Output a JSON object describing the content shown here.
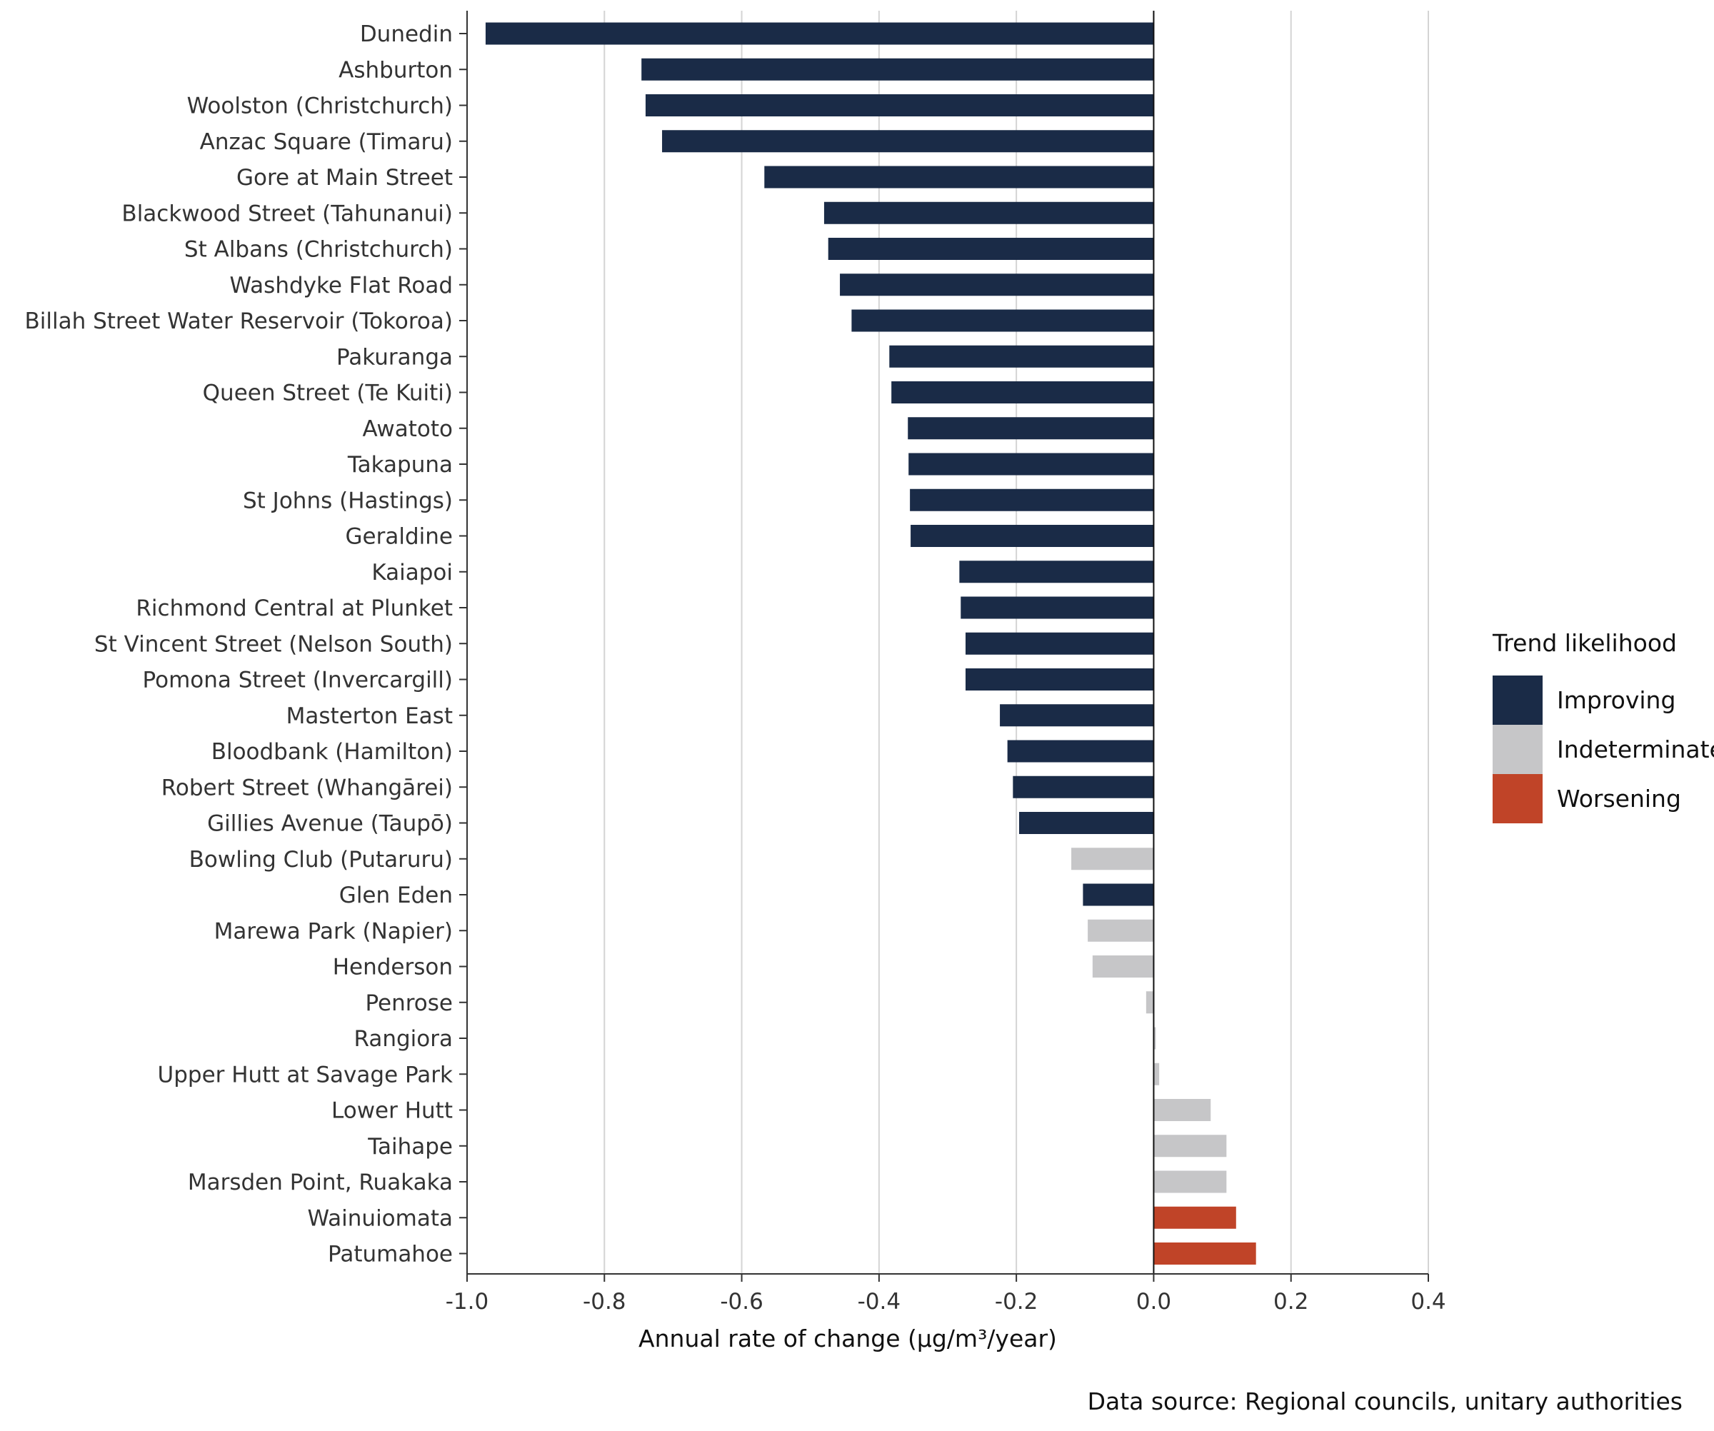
{
  "chart_data": {
    "type": "bar",
    "orientation": "horizontal",
    "xlabel": "Annual rate of change (µg/m³/year)",
    "xlim": [
      -1.0,
      0.4
    ],
    "xticks": [
      -1.0,
      -0.8,
      -0.6,
      -0.4,
      -0.2,
      0.0,
      0.2,
      0.4
    ],
    "xtick_labels": [
      "-1.0",
      "-0.8",
      "-0.6",
      "-0.4",
      "-0.2",
      "0.0",
      "0.2",
      "0.4"
    ],
    "grid": "vertical major",
    "categories": [
      "Dunedin",
      "Ashburton",
      "Woolston (Christchurch)",
      "Anzac Square (Timaru)",
      "Gore at Main Street",
      "Blackwood Street (Tahunanui)",
      "St Albans (Christchurch)",
      "Washdyke Flat Road",
      "Billah Street Water Reservoir (Tokoroa)",
      "Pakuranga",
      "Queen Street (Te Kuiti)",
      "Awatoto",
      "Takapuna",
      "St Johns (Hastings)",
      "Geraldine",
      "Kaiapoi",
      "Richmond Central at Plunket",
      "St Vincent Street (Nelson South)",
      "Pomona Street (Invercargill)",
      "Masterton East",
      "Bloodbank (Hamilton)",
      "Robert Street (Whangārei)",
      "Gillies Avenue (Taupō)",
      "Bowling Club (Putaruru)",
      "Glen Eden",
      "Marewa Park (Napier)",
      "Henderson",
      "Penrose",
      "Rangiora",
      "Upper Hutt at Savage Park",
      "Lower Hutt",
      "Taihape",
      "Marsden Point, Ruakaka",
      "Wainuiomata",
      "Patumahoe"
    ],
    "values": [
      -0.973,
      -0.746,
      -0.74,
      -0.716,
      -0.567,
      -0.48,
      -0.474,
      -0.457,
      -0.44,
      -0.385,
      -0.382,
      -0.358,
      -0.357,
      -0.355,
      -0.354,
      -0.283,
      -0.281,
      -0.274,
      -0.274,
      -0.224,
      -0.213,
      -0.205,
      -0.196,
      -0.12,
      -0.103,
      -0.096,
      -0.089,
      -0.011,
      0.003,
      0.008,
      0.083,
      0.106,
      0.106,
      0.12,
      0.149
    ],
    "likelihood": [
      "Improving",
      "Improving",
      "Improving",
      "Improving",
      "Improving",
      "Improving",
      "Improving",
      "Improving",
      "Improving",
      "Improving",
      "Improving",
      "Improving",
      "Improving",
      "Improving",
      "Improving",
      "Improving",
      "Improving",
      "Improving",
      "Improving",
      "Improving",
      "Improving",
      "Improving",
      "Improving",
      "Indeterminate",
      "Improving",
      "Indeterminate",
      "Indeterminate",
      "Indeterminate",
      "Indeterminate",
      "Indeterminate",
      "Indeterminate",
      "Indeterminate",
      "Indeterminate",
      "Worsening",
      "Worsening"
    ],
    "legend": {
      "title": "Trend likelihood",
      "placement": "right",
      "entries": [
        {
          "label": "Improving",
          "color": "#1a2b47"
        },
        {
          "label": "Indeterminate",
          "color": "#c6c6c8"
        },
        {
          "label": "Worsening",
          "color": "#c04428"
        }
      ]
    },
    "source_note": "Data source: Regional councils, unitary authorities"
  }
}
